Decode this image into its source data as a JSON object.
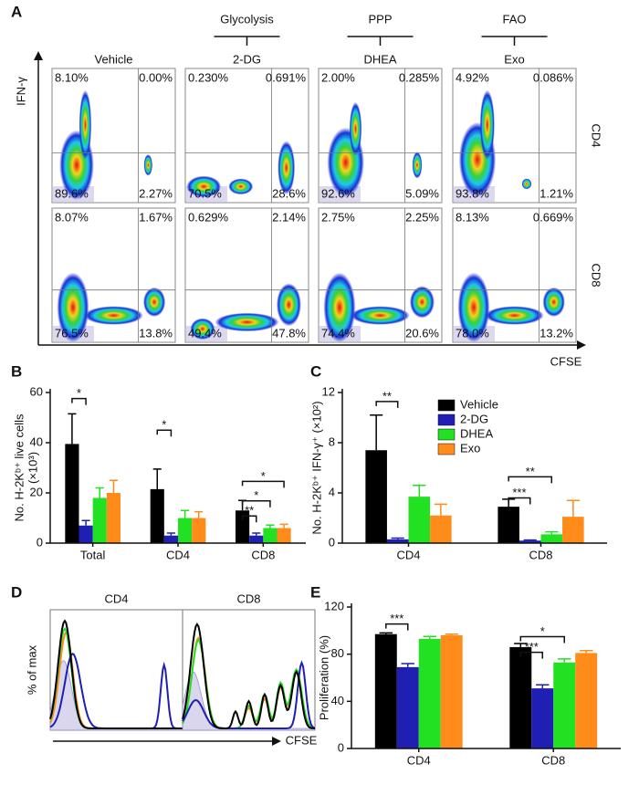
{
  "figure": {
    "panel_a": {
      "panel": "A",
      "groups": [
        "Glycolysis",
        "PPP",
        "FAO"
      ],
      "columns": [
        "Vehicle",
        "2-DG",
        "DHEA",
        "Exo"
      ],
      "rows": [
        "CD4",
        "CD8"
      ],
      "y_axis": "IFN-γ",
      "x_axis": "CFSE",
      "quadrants": [
        [
          [
            "8.10%",
            "0.00%",
            "89.6%",
            "2.27%"
          ],
          [
            "0.230%",
            "0.691%",
            "70.5%",
            "28.6%"
          ],
          [
            "2.00%",
            "0.285%",
            "92.6%",
            "5.09%"
          ],
          [
            "4.92%",
            "0.086%",
            "93.8%",
            "1.21%"
          ]
        ],
        [
          [
            "8.07%",
            "1.67%",
            "76.5%",
            "13.8%"
          ],
          [
            "0.629%",
            "2.14%",
            "49.4%",
            "47.8%"
          ],
          [
            "2.75%",
            "2.25%",
            "74.4%",
            "20.6%"
          ],
          [
            "8.13%",
            "0.669%",
            "78.0%",
            "13.2%"
          ]
        ]
      ]
    },
    "panel_d": {
      "panel": "D",
      "titles": [
        "CD4",
        "CD8"
      ],
      "ylabel": "% of max",
      "xlabel": "CFSE"
    }
  },
  "chart_data": [
    {
      "type": "bar",
      "panel": "B",
      "ylabel": [
        "No. H-2Kᵇ⁺ live cells",
        "(×10³)"
      ],
      "categories": [
        "Total",
        "CD4",
        "CD8"
      ],
      "series": [
        {
          "color": "#000000",
          "values": [
            39.5,
            21.5,
            13
          ],
          "errors": [
            12,
            8,
            4
          ]
        },
        {
          "color": "#1f1fb4",
          "values": [
            7,
            3,
            3
          ],
          "errors": [
            2,
            1,
            1
          ]
        },
        {
          "color": "#22e022",
          "values": [
            18,
            10,
            6
          ],
          "errors": [
            4,
            3,
            1.2
          ]
        },
        {
          "color": "#ff8c1a",
          "values": [
            20,
            10,
            6
          ],
          "errors": [
            5,
            2.5,
            1.5
          ]
        }
      ],
      "ylim": [
        0,
        60
      ],
      "yticks": [
        0,
        20,
        40,
        60
      ],
      "annotations": [
        "*",
        "*",
        "**",
        "*",
        "*"
      ]
    },
    {
      "type": "bar",
      "panel": "C",
      "ylabel": [
        "No. H-2Kᵇ⁺ IFN-γ⁺ (×10²)"
      ],
      "categories": [
        "CD4",
        "CD8"
      ],
      "series": [
        {
          "name": "Vehicle",
          "color": "#000000",
          "values": [
            7.4,
            2.9
          ],
          "errors": [
            2.8,
            0.6
          ]
        },
        {
          "name": "2-DG",
          "color": "#1f1fb4",
          "values": [
            0.3,
            0.2
          ],
          "errors": [
            0.1,
            0.05
          ]
        },
        {
          "name": "DHEA",
          "color": "#22e022",
          "values": [
            3.7,
            0.7
          ],
          "errors": [
            0.9,
            0.2
          ]
        },
        {
          "name": "Exo",
          "color": "#ff8c1a",
          "values": [
            2.2,
            2.1
          ],
          "errors": [
            0.9,
            1.3
          ]
        }
      ],
      "ylim": [
        0,
        12
      ],
      "yticks": [
        0,
        4,
        8,
        12
      ],
      "legend": "upper right",
      "annotations": [
        "**",
        "***",
        "**"
      ]
    },
    {
      "type": "bar",
      "panel": "E",
      "ylabel": [
        "Proliferation (%)"
      ],
      "categories": [
        "CD4",
        "CD8"
      ],
      "series": [
        {
          "color": "#000000",
          "values": [
            97,
            86
          ],
          "errors": [
            1,
            3
          ]
        },
        {
          "color": "#1f1fb4",
          "values": [
            69,
            51
          ],
          "errors": [
            3,
            3
          ]
        },
        {
          "color": "#22e022",
          "values": [
            93,
            73
          ],
          "errors": [
            2,
            3
          ]
        },
        {
          "color": "#ff8c1a",
          "values": [
            96,
            81
          ],
          "errors": [
            1,
            2
          ]
        }
      ],
      "ylim": [
        0,
        120
      ],
      "yticks": [
        0,
        40,
        80,
        120
      ],
      "annotations": [
        "***",
        "***",
        "*"
      ]
    }
  ]
}
